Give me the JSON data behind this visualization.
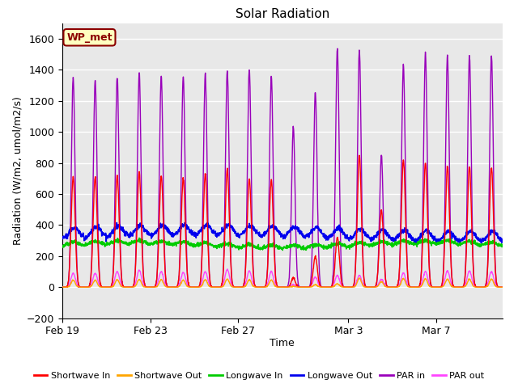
{
  "title": "Solar Radiation",
  "xlabel": "Time",
  "ylabel": "Radiation (W/m2, umol/m2/s)",
  "ylim": [
    -200,
    1700
  ],
  "yticks": [
    -200,
    0,
    200,
    400,
    600,
    800,
    1000,
    1200,
    1400,
    1600
  ],
  "bg_color": "#e8e8e8",
  "annotation_text": "WP_met",
  "annotation_bg": "#ffffc0",
  "annotation_border": "#8b0000",
  "series": {
    "shortwave_in": {
      "color": "#ff0000",
      "label": "Shortwave In",
      "lw": 1.0
    },
    "shortwave_out": {
      "color": "#ffa500",
      "label": "Shortwave Out",
      "lw": 1.0
    },
    "longwave_in": {
      "color": "#00cc00",
      "label": "Longwave In",
      "lw": 1.2
    },
    "longwave_out": {
      "color": "#0000ee",
      "label": "Longwave Out",
      "lw": 1.2
    },
    "par_in": {
      "color": "#9900bb",
      "label": "PAR in",
      "lw": 1.0
    },
    "par_out": {
      "color": "#ff44ff",
      "label": "PAR out",
      "lw": 1.0
    }
  },
  "x_tick_labels": [
    "Feb 19",
    "Feb 23",
    "Feb 27",
    "Mar 3",
    "Mar 7"
  ],
  "x_tick_positions": [
    0,
    4,
    8,
    13,
    17
  ],
  "total_days": 20,
  "num_points": 2000
}
